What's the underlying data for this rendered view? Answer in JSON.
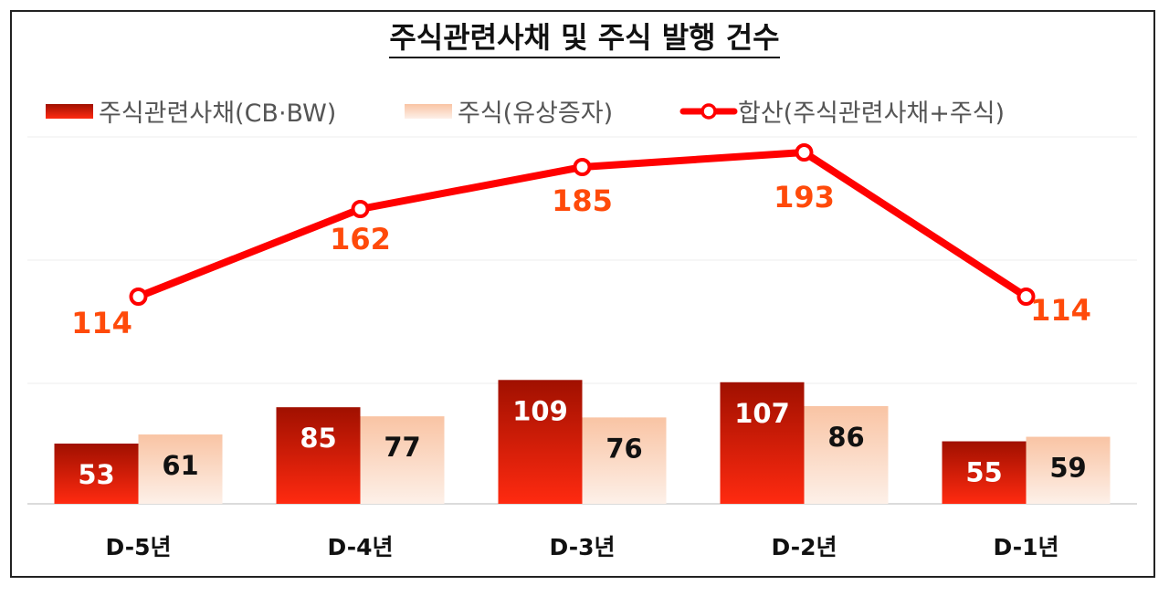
{
  "chart_data": {
    "type": "bar",
    "title": "주식관련사채 및 주식 발행 건수",
    "categories": [
      "D-5년",
      "D-4년",
      "D-3년",
      "D-2년",
      "D-1년"
    ],
    "series": [
      {
        "name": "주식관련사채(CB·BW)",
        "type": "bar",
        "values": [
          53,
          85,
          109,
          107,
          55
        ]
      },
      {
        "name": "주식(유상증자)",
        "type": "bar",
        "values": [
          61,
          77,
          76,
          86,
          59
        ]
      },
      {
        "name": "합산(주식관련사채+주식)",
        "type": "line",
        "values": [
          114,
          162,
          185,
          193,
          114
        ]
      }
    ],
    "xlabel": "",
    "ylabel": "",
    "ylim": [
      0,
      200
    ],
    "grid": true,
    "legend": "top",
    "colors": {
      "bond_dark": "#a01000",
      "bond_light": "#ff2a10",
      "stock_dark": "#f9c4a4",
      "stock_light": "#fdf0e8",
      "total": "#ff0000",
      "total_label": "#ff4a0a"
    }
  }
}
